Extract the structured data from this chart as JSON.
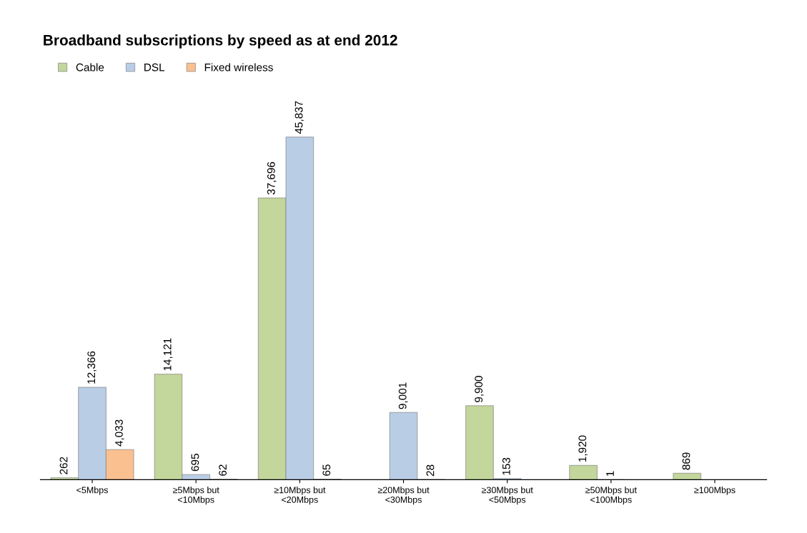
{
  "chart_data": {
    "type": "bar",
    "title": "Broadband subscriptions by speed as at end 2012",
    "categories": [
      "<5Mbps",
      "≥5Mbps but\n<10Mbps",
      "≥10Mbps but\n<20Mbps",
      "≥20Mbps but\n<30Mbps",
      "≥30Mbps but\n<50Mbps",
      "≥50Mbps but\n<100Mbps",
      "≥100Mbps"
    ],
    "series": [
      {
        "name": "Cable",
        "color": "#c3d69b",
        "values": [
          262,
          14121,
          37696,
          null,
          9900,
          1920,
          869
        ],
        "value_labels": [
          "262",
          "14,121",
          "37,696",
          null,
          "9,900",
          "1,920",
          "869"
        ]
      },
      {
        "name": "DSL",
        "color": "#b9cde5",
        "values": [
          12366,
          695,
          45837,
          9001,
          153,
          1,
          null
        ],
        "value_labels": [
          "12,366",
          "695",
          "45,837",
          "9,001",
          "153",
          "1",
          null
        ]
      },
      {
        "name": "Fixed wireless",
        "color": "#fac090",
        "values": [
          4033,
          62,
          65,
          28,
          null,
          null,
          null
        ],
        "value_labels": [
          "4,033",
          "62",
          "65",
          "28",
          null,
          null,
          null
        ]
      }
    ],
    "legend": "top left",
    "grid": false
  }
}
